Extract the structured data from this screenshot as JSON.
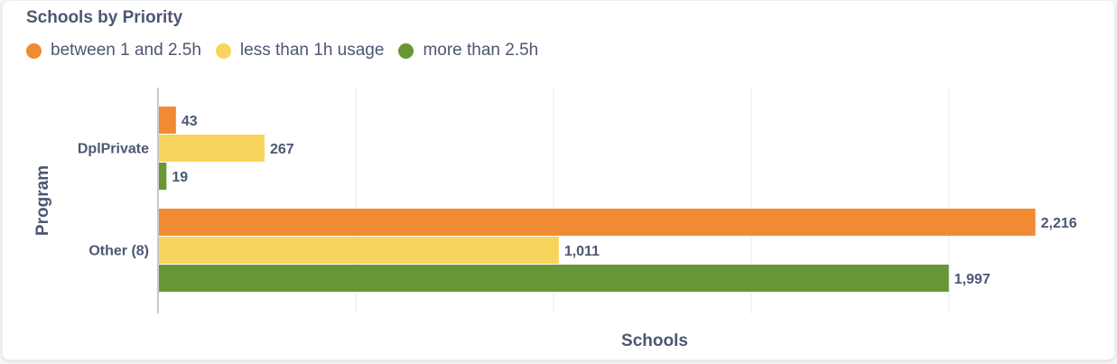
{
  "chart_data": {
    "type": "bar",
    "orientation": "horizontal",
    "title": "Schools by Priority",
    "xlabel": "Schools",
    "ylabel": "Program",
    "categories": [
      "DplPrivate",
      "Other (8)"
    ],
    "series": [
      {
        "name": "between 1 and 2.5h",
        "color": "#f08a33",
        "values": [
          43,
          2216
        ]
      },
      {
        "name": "less than 1h usage",
        "color": "#f9d45c",
        "values": [
          267,
          1011
        ]
      },
      {
        "name": "more than 2.5h",
        "color": "#689636",
        "values": [
          19,
          1997
        ]
      }
    ],
    "data_labels": [
      [
        "43",
        "2,216"
      ],
      [
        "267",
        "1,011"
      ],
      [
        "19",
        "1,997"
      ]
    ],
    "xlim": [
      0,
      2500
    ],
    "grid_step": 500,
    "grid": true,
    "legend_position": "top-left"
  }
}
